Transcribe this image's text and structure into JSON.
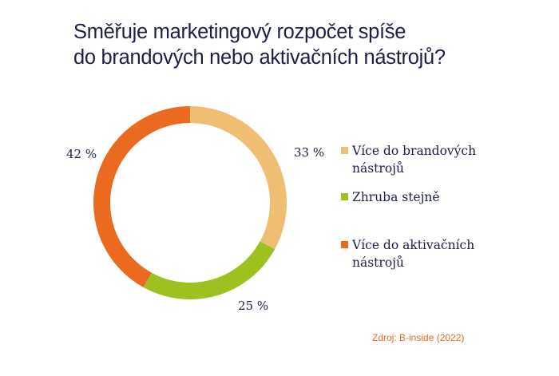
{
  "title_lines": [
    "Směřuje marketingový rozpočet spíše",
    "do brandových nebo aktivačních nástrojů?"
  ],
  "chart_data": {
    "type": "pie",
    "variant": "donut",
    "categories": [
      "Více do brandových nástrojů",
      "Zhruba stejně",
      "Více do aktivačních nástrojů"
    ],
    "values": [
      33,
      25,
      42
    ],
    "data_labels": [
      "33 %",
      "25 %",
      "42 %"
    ],
    "colors": [
      "#efbe73",
      "#9dc11e",
      "#ec6a1f"
    ],
    "legend_position": "right"
  },
  "source": "Zdroj: B-inside (2022)"
}
